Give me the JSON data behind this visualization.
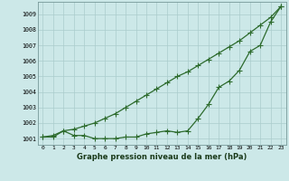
{
  "x": [
    0,
    1,
    2,
    3,
    4,
    5,
    6,
    7,
    8,
    9,
    10,
    11,
    12,
    13,
    14,
    15,
    16,
    17,
    18,
    19,
    20,
    21,
    22,
    23
  ],
  "line_smooth": [
    1001.1,
    1001.2,
    1001.5,
    1001.6,
    1001.8,
    1002.0,
    1002.3,
    1002.6,
    1003.0,
    1003.4,
    1003.8,
    1004.2,
    1004.6,
    1005.0,
    1005.3,
    1005.7,
    1006.1,
    1006.5,
    1006.9,
    1007.3,
    1007.8,
    1008.3,
    1008.8,
    1009.5
  ],
  "line_marker": [
    1001.1,
    1001.1,
    1001.5,
    1001.2,
    1001.2,
    1001.0,
    1001.0,
    1001.0,
    1001.1,
    1001.1,
    1001.3,
    1001.4,
    1001.5,
    1001.4,
    1001.5,
    1002.3,
    1003.2,
    1004.3,
    1004.7,
    1005.4,
    1006.6,
    1007.0,
    1008.5,
    1009.5
  ],
  "ylim_min": 1000.6,
  "ylim_max": 1009.8,
  "yticks": [
    1001,
    1002,
    1003,
    1004,
    1005,
    1006,
    1007,
    1008,
    1009
  ],
  "xtick_labels": [
    "0",
    "1",
    "2",
    "3",
    "4",
    "5",
    "6",
    "7",
    "8",
    "9",
    "10",
    "11",
    "12",
    "13",
    "14",
    "15",
    "16",
    "17",
    "18",
    "19",
    "20",
    "21",
    "22",
    "23"
  ],
  "xlabel": "Graphe pression niveau de la mer (hPa)",
  "line_color": "#2d6b2d",
  "bg_color": "#cce8e8",
  "grid_color": "#aacccc",
  "marker": "+",
  "markersize": 4,
  "linewidth": 0.9
}
